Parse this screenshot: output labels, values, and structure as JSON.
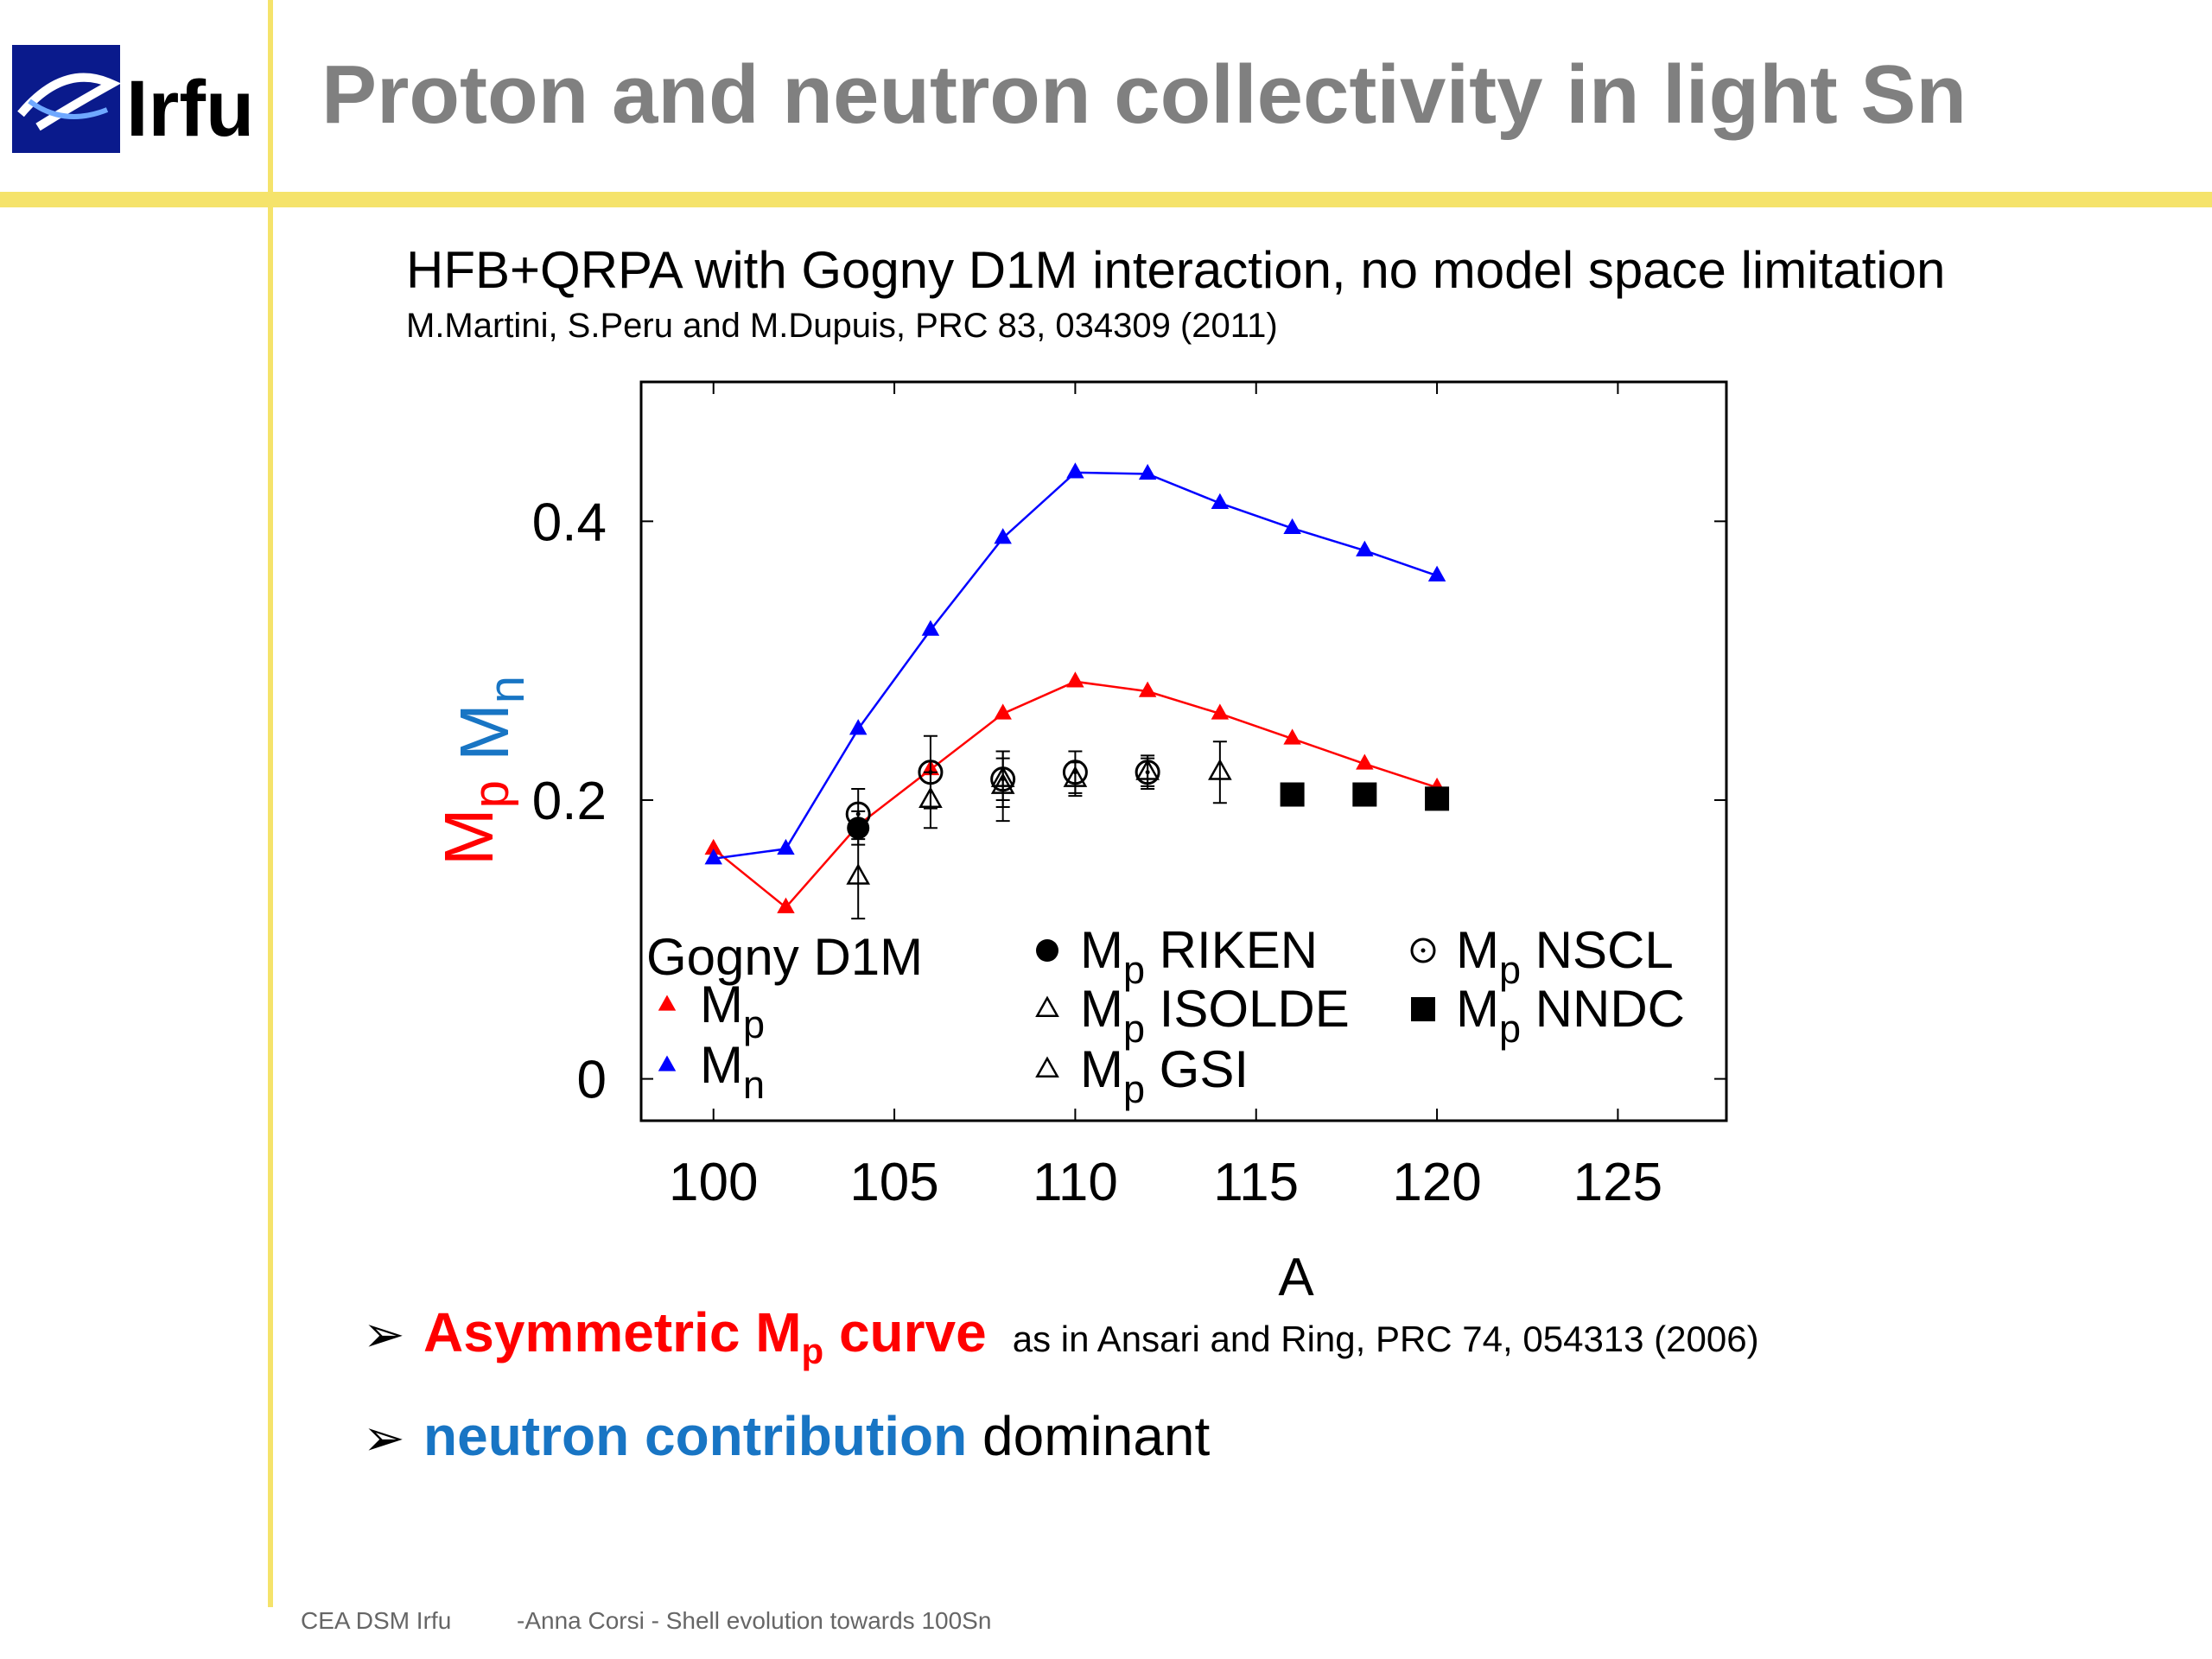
{
  "header": {
    "logo_text": "Irfu",
    "title": "Proton and neutron collectivity in light Sn"
  },
  "subtitle": "HFB+QRPA with Gogny D1M interaction, no model space limitation",
  "reference": "M.Martini, S.Peru and M.Dupuis, PRC 83, 034309 (2011)",
  "chart_data": {
    "type": "scatter",
    "xlabel": "A",
    "ylabel_mp": "M",
    "ylabel_mp_sub": "p",
    "ylabel_mn": "M",
    "ylabel_mn_sub": "n",
    "xlim": [
      98,
      128
    ],
    "ylim": [
      -0.03,
      0.5
    ],
    "xticks": [
      100,
      105,
      110,
      115,
      120,
      125
    ],
    "yticks": [
      0,
      0.2,
      0.4
    ],
    "xtick_labels": [
      "100",
      "105",
      "110",
      "115",
      "120",
      "125"
    ],
    "ytick_labels": [
      "0",
      "0.2",
      "0.4"
    ],
    "legend_title": "Gogny D1M",
    "series": [
      {
        "name": "Mp",
        "label_main": "M",
        "label_sub": "p",
        "label_rest": "",
        "kind": "line-triangle",
        "color": "#ff0000",
        "x": [
          100,
          102,
          104,
          106,
          108,
          110,
          112,
          114,
          116,
          118,
          120
        ],
        "y": [
          0.165,
          0.123,
          0.182,
          0.222,
          0.262,
          0.285,
          0.278,
          0.262,
          0.244,
          0.226,
          0.209
        ]
      },
      {
        "name": "Mn",
        "label_main": "M",
        "label_sub": "n",
        "label_rest": "",
        "kind": "line-triangle",
        "color": "#0000ff",
        "x": [
          100,
          102,
          104,
          106,
          108,
          110,
          112,
          114,
          116,
          118,
          120
        ],
        "y": [
          0.158,
          0.165,
          0.251,
          0.322,
          0.388,
          0.435,
          0.434,
          0.413,
          0.395,
          0.379,
          0.361
        ]
      },
      {
        "name": "Mp RIKEN",
        "label_main": "M",
        "label_sub": "p",
        "label_rest": " RIKEN",
        "kind": "filled-circle",
        "color": "#000000",
        "x": [
          104
        ],
        "y": [
          0.18
        ],
        "err": [
          0.012
        ]
      },
      {
        "name": "Mp ISOLDE",
        "label_main": "M",
        "label_sub": "p",
        "label_rest": " ISOLDE",
        "kind": "open-triangle",
        "color": "#000000",
        "x": [
          104,
          106,
          108,
          110
        ],
        "y": [
          0.145,
          0.2,
          0.215,
          0.215
        ],
        "err": [
          0.03,
          0.02,
          0.02,
          0.012
        ]
      },
      {
        "name": "Mp GSI",
        "label_main": "M",
        "label_sub": "p",
        "label_rest": " GSI",
        "kind": "open-triangle",
        "color": "#000000",
        "x": [
          108,
          112,
          114
        ],
        "y": [
          0.21,
          0.22,
          0.22
        ],
        "err": [
          0.025,
          0.01,
          0.022
        ]
      },
      {
        "name": "Mp NSCL",
        "label_main": "M",
        "label_sub": "p",
        "label_rest": " NSCL",
        "kind": "open-circle",
        "color": "#000000",
        "x": [
          104,
          106,
          108,
          110,
          112
        ],
        "y": [
          0.19,
          0.22,
          0.215,
          0.22,
          0.22
        ],
        "err": [
          0.018,
          0.026,
          0.015,
          0.015,
          0.012
        ]
      },
      {
        "name": "Mp NNDC",
        "label_main": "M",
        "label_sub": "p",
        "label_rest": " NNDC",
        "kind": "filled-square",
        "color": "#000000",
        "x": [
          116,
          118,
          120
        ],
        "y": [
          0.204,
          0.204,
          0.201
        ]
      }
    ]
  },
  "bullets": [
    {
      "red_main": "Asymmetric M",
      "red_sub": "p",
      "red_rest": " curve",
      "small": "as in Ansari and Ring, PRC 74, 054313 (2006)"
    },
    {
      "blue": "neutron contribution",
      "rest": " dominant"
    }
  ],
  "bullet_glyph": "➢",
  "footer": {
    "org": "CEA DSM Irfu",
    "author_topic": "-Anna Corsi -   Shell evolution towards 100Sn"
  }
}
